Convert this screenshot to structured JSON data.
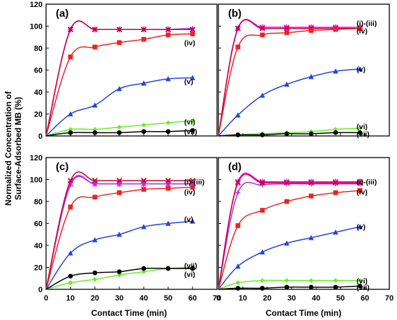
{
  "figure": {
    "ylabel_line1": "Normalized Concentration of",
    "ylabel_line2": "Surface-Adsorbed MB (%)",
    "xlabel": "Contact Time (min)"
  },
  "colors": {
    "i": "#ff00ff",
    "ii": "#9933ff",
    "iii": "#cc0033",
    "iv": "#ee2222",
    "v": "#2244dd",
    "vi": "#66ee22",
    "vii": "#000000"
  },
  "chart_data": [
    {
      "type": "line",
      "panel": "(a)",
      "xlim": [
        0,
        70
      ],
      "ylim": [
        0,
        120
      ],
      "x_ticks": [
        "0",
        "10",
        "20",
        "30",
        "40",
        "50",
        "60",
        "70"
      ],
      "y_ticks": [
        "0",
        "20",
        "40",
        "60",
        "80",
        "100",
        "120"
      ],
      "show_x_ticks": false,
      "show_y_ticks": true,
      "series": [
        {
          "key": "i",
          "marker": "star",
          "x": [
            0,
            10,
            20,
            30,
            40,
            50,
            60
          ],
          "y": [
            0,
            97,
            97,
            97,
            97,
            97,
            97
          ]
        },
        {
          "key": "ii",
          "marker": "plus",
          "x": [
            0,
            10,
            20,
            30,
            40,
            50,
            60
          ],
          "y": [
            0,
            97,
            97,
            97,
            97,
            97,
            98
          ]
        },
        {
          "key": "iii",
          "marker": "cross",
          "x": [
            0,
            10,
            20,
            30,
            40,
            50,
            60
          ],
          "y": [
            0,
            97,
            97,
            97,
            97,
            97,
            97
          ]
        },
        {
          "key": "iv",
          "name": "(iv)",
          "marker": "square",
          "x": [
            0,
            10,
            20,
            30,
            40,
            50,
            60
          ],
          "y": [
            0,
            72,
            81,
            85,
            88,
            92,
            93
          ]
        },
        {
          "key": "v",
          "name": "(v)",
          "marker": "triangle",
          "x": [
            0,
            10,
            20,
            30,
            40,
            50,
            60
          ],
          "y": [
            0,
            20,
            28,
            43,
            48,
            52,
            53
          ]
        },
        {
          "key": "vi",
          "name": "(vi)",
          "marker": "diamond",
          "x": [
            0,
            10,
            20,
            30,
            40,
            50,
            60
          ],
          "y": [
            0,
            6,
            6,
            8,
            10,
            12,
            14
          ]
        },
        {
          "key": "vii",
          "name": "(vii)",
          "marker": "circle",
          "x": [
            0,
            10,
            20,
            30,
            40,
            50,
            60
          ],
          "y": [
            0,
            3,
            3,
            3,
            4,
            4,
            5
          ]
        }
      ],
      "labels": [
        {
          "text": "(iv)",
          "y": 85
        },
        {
          "text": "(v)",
          "y": 50
        },
        {
          "text": "(vi)",
          "y": 13
        },
        {
          "text": "(vii)",
          "y": 4
        }
      ]
    },
    {
      "type": "line",
      "panel": "(b)",
      "xlim": [
        0,
        70
      ],
      "ylim": [
        0,
        120
      ],
      "x_ticks": [
        "0",
        "10",
        "20",
        "30",
        "40",
        "50",
        "60",
        "70"
      ],
      "y_ticks": [
        "0",
        "20",
        "40",
        "60",
        "80",
        "100",
        "120"
      ],
      "show_x_ticks": false,
      "show_y_ticks": false,
      "series": [
        {
          "key": "i",
          "marker": "star",
          "x": [
            0,
            8,
            18,
            28,
            38,
            48,
            58
          ],
          "y": [
            0,
            98,
            99,
            99,
            99,
            99,
            99
          ]
        },
        {
          "key": "ii",
          "marker": "plus",
          "x": [
            0,
            8,
            18,
            28,
            38,
            48,
            58
          ],
          "y": [
            0,
            98,
            98,
            98,
            98,
            98,
            98
          ]
        },
        {
          "key": "iii",
          "marker": "cross",
          "x": [
            0,
            8,
            18,
            28,
            38,
            48,
            58
          ],
          "y": [
            0,
            98,
            98,
            98,
            98,
            98,
            98
          ]
        },
        {
          "key": "iv",
          "name": "(iv)",
          "marker": "square",
          "x": [
            0,
            8,
            18,
            28,
            38,
            48,
            58
          ],
          "y": [
            0,
            81,
            92,
            94,
            96,
            97,
            98
          ]
        },
        {
          "key": "v",
          "name": "(v)",
          "marker": "triangle",
          "x": [
            0,
            8,
            18,
            28,
            38,
            48,
            58
          ],
          "y": [
            0,
            19,
            37,
            47,
            54,
            59,
            61
          ]
        },
        {
          "key": "vi",
          "name": "(vi)",
          "marker": "diamond",
          "x": [
            0,
            8,
            18,
            28,
            38,
            48,
            58
          ],
          "y": [
            0,
            1,
            2,
            3,
            4,
            6,
            7
          ]
        },
        {
          "key": "vii",
          "name": "(vii)",
          "marker": "circle",
          "x": [
            0,
            8,
            18,
            28,
            38,
            48,
            58
          ],
          "y": [
            0,
            1,
            1,
            2,
            2,
            3,
            3
          ]
        }
      ],
      "labels": [
        {
          "text": "(i)-(iii)",
          "y": 103
        },
        {
          "text": "(iv)",
          "y": 96
        },
        {
          "text": "(v)",
          "y": 61
        },
        {
          "text": "(vi)",
          "y": 9
        },
        {
          "text": "(vii)",
          "y": 2
        }
      ]
    },
    {
      "type": "line",
      "panel": "(c)",
      "xlim": [
        0,
        70
      ],
      "ylim": [
        0,
        120
      ],
      "x_ticks": [
        "0",
        "10",
        "20",
        "30",
        "40",
        "50",
        "60",
        "70"
      ],
      "y_ticks": [
        "0",
        "20",
        "40",
        "60",
        "80",
        "100",
        "120"
      ],
      "show_x_ticks": true,
      "show_y_ticks": true,
      "series": [
        {
          "key": "i",
          "marker": "star",
          "x": [
            0,
            10,
            20,
            30,
            40,
            50,
            60
          ],
          "y": [
            0,
            96,
            96,
            96,
            96,
            96,
            96
          ]
        },
        {
          "key": "ii",
          "marker": "plus",
          "x": [
            0,
            10,
            20,
            30,
            40,
            50,
            60
          ],
          "y": [
            0,
            95,
            96,
            96,
            96,
            96,
            96
          ]
        },
        {
          "key": "iii",
          "marker": "cross",
          "x": [
            0,
            10,
            20,
            30,
            40,
            50,
            60
          ],
          "y": [
            0,
            99,
            99,
            99,
            99,
            99,
            99
          ]
        },
        {
          "key": "iv",
          "name": "(iv)",
          "marker": "square",
          "x": [
            0,
            10,
            20,
            30,
            40,
            50,
            60
          ],
          "y": [
            0,
            75,
            84,
            88,
            91,
            92,
            93
          ]
        },
        {
          "key": "v",
          "name": "(v)",
          "marker": "triangle",
          "x": [
            0,
            10,
            20,
            30,
            40,
            50,
            60
          ],
          "y": [
            0,
            33,
            45,
            50,
            57,
            60,
            62
          ]
        },
        {
          "key": "vi",
          "name": "(vi)",
          "marker": "diamond",
          "x": [
            0,
            10,
            20,
            30,
            40,
            50,
            60
          ],
          "y": [
            0,
            6,
            9,
            13,
            16,
            19,
            20
          ]
        },
        {
          "key": "vii",
          "name": "(vii)",
          "marker": "circle",
          "x": [
            0,
            10,
            20,
            30,
            40,
            50,
            60
          ],
          "y": [
            0,
            12,
            15,
            16,
            19,
            19,
            19
          ]
        }
      ],
      "labels": [
        {
          "text": "(i)-(iii)",
          "y": 98
        },
        {
          "text": "(iv)",
          "y": 89
        },
        {
          "text": "(v)",
          "y": 64
        },
        {
          "text": "(vii)",
          "y": 22
        },
        {
          "text": "(vi)",
          "y": 14
        }
      ]
    },
    {
      "type": "line",
      "panel": "(d)",
      "xlim": [
        0,
        70
      ],
      "ylim": [
        0,
        120
      ],
      "x_ticks": [
        "0",
        "10",
        "20",
        "30",
        "40",
        "50",
        "60",
        "70"
      ],
      "y_ticks": [
        "0",
        "20",
        "40",
        "60",
        "80",
        "100",
        "120"
      ],
      "show_x_ticks": true,
      "show_y_ticks": false,
      "series": [
        {
          "key": "i",
          "marker": "star",
          "x": [
            0,
            8,
            18,
            28,
            38,
            48,
            58
          ],
          "y": [
            0,
            98,
            98,
            98,
            98,
            98,
            98
          ]
        },
        {
          "key": "ii",
          "marker": "plus",
          "x": [
            0,
            8,
            18,
            28,
            38,
            48,
            58
          ],
          "y": [
            0,
            88,
            95,
            96,
            96,
            96,
            96
          ]
        },
        {
          "key": "iii",
          "marker": "cross",
          "x": [
            0,
            8,
            18,
            28,
            38,
            48,
            58
          ],
          "y": [
            0,
            97,
            97,
            97,
            97,
            97,
            97
          ]
        },
        {
          "key": "iv",
          "name": "(iv)",
          "marker": "square",
          "x": [
            0,
            8,
            18,
            28,
            38,
            48,
            58
          ],
          "y": [
            0,
            58,
            72,
            80,
            85,
            88,
            90
          ]
        },
        {
          "key": "v",
          "name": "(v)",
          "marker": "triangle",
          "x": [
            0,
            8,
            18,
            28,
            38,
            48,
            58
          ],
          "y": [
            0,
            21,
            34,
            42,
            47,
            52,
            57
          ]
        },
        {
          "key": "vi",
          "name": "(vi)",
          "marker": "diamond",
          "x": [
            0,
            8,
            18,
            28,
            38,
            48,
            58
          ],
          "y": [
            0,
            6,
            8,
            8,
            8,
            8,
            8
          ]
        },
        {
          "key": "vii",
          "name": "(vii)",
          "marker": "circle",
          "x": [
            0,
            8,
            18,
            28,
            38,
            48,
            58
          ],
          "y": [
            0,
            1,
            1,
            2,
            2,
            2,
            3
          ]
        }
      ],
      "labels": [
        {
          "text": "(i)-(iii)",
          "y": 98
        },
        {
          "text": "(iv)",
          "y": 89
        },
        {
          "text": "(v)",
          "y": 57
        },
        {
          "text": "(vi)",
          "y": 8
        },
        {
          "text": "(vii)",
          "y": 2
        }
      ]
    }
  ]
}
